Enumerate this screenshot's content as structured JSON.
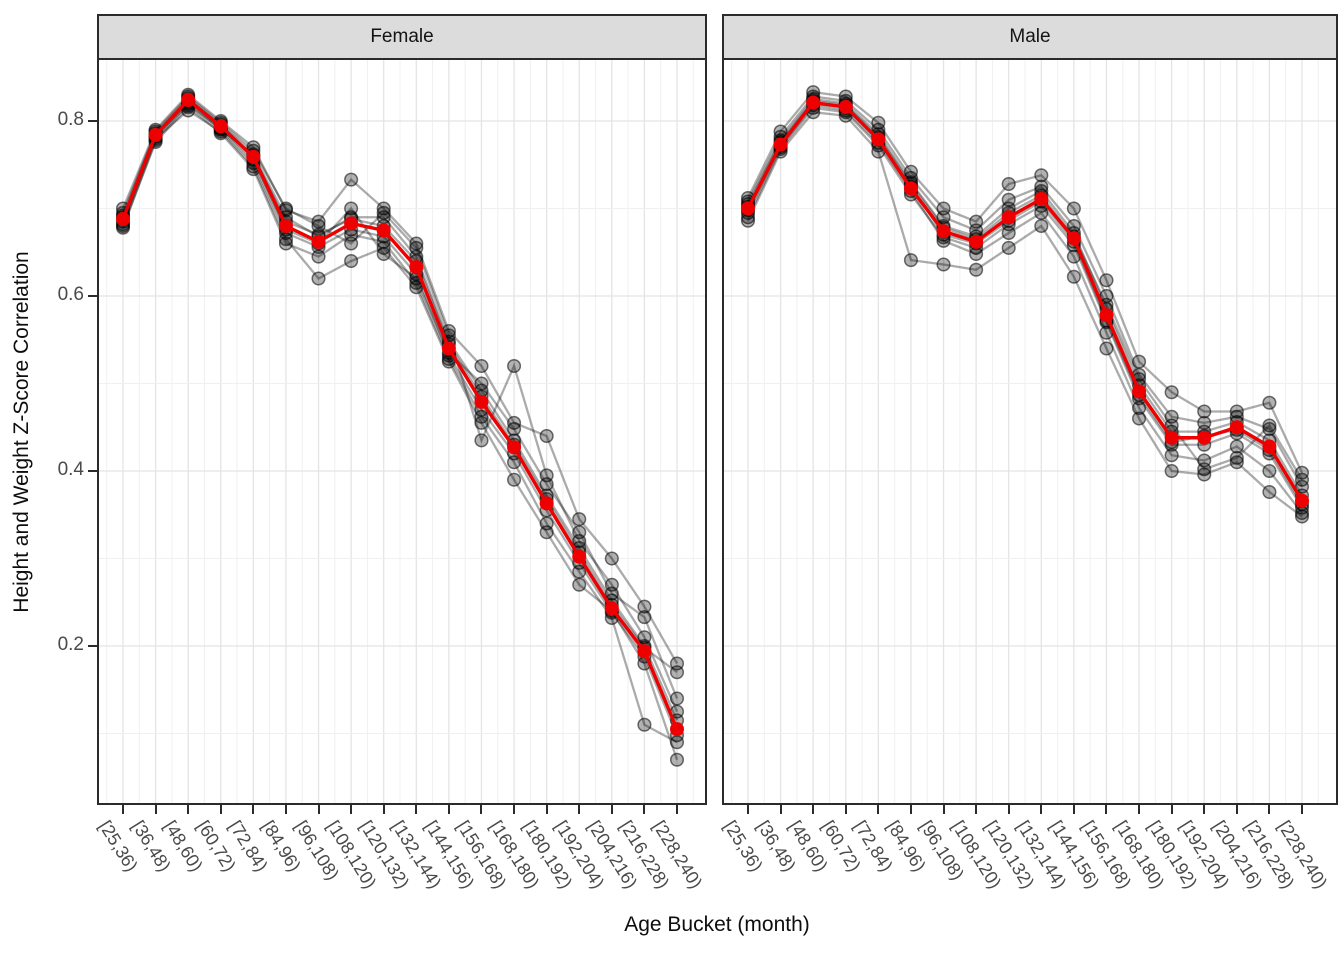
{
  "chart_data": {
    "type": "line",
    "title": "",
    "facets": [
      "Female",
      "Male"
    ],
    "xlabel": "Age Bucket (month)",
    "ylabel": "Height and Weight Z-Score Correlation",
    "categories": [
      "[25,36)",
      "[36,48)",
      "[48,60)",
      "[60,72)",
      "[72,84)",
      "[84,96)",
      "[96,108)",
      "[108,120)",
      "[120,132)",
      "[132,144)",
      "[144,156)",
      "[156,168)",
      "[168,180)",
      "[180,192)",
      "[192,204)",
      "[204,216)",
      "[216,228)",
      "[228,240)"
    ],
    "y_major_ticks": [
      0.8,
      0.6,
      0.4,
      0.2
    ],
    "y_minor_ticks": [
      0.7,
      0.5,
      0.3,
      0.1
    ],
    "y_tick_labels": [
      "0.8",
      "0.6",
      "0.4",
      "0.2"
    ],
    "ylim": [
      0.02,
      0.87
    ],
    "grid": "major+minor",
    "legend_position": "none",
    "panels": [
      {
        "facet": "Female",
        "mean": [
          0.688,
          0.784,
          0.824,
          0.794,
          0.759,
          0.68,
          0.662,
          0.683,
          0.675,
          0.633,
          0.54,
          0.479,
          0.427,
          0.363,
          0.302,
          0.243,
          0.194,
          0.105
        ],
        "individuals": [
          [
            0.678,
            0.778,
            0.82,
            0.79,
            0.752,
            0.672,
            0.656,
            0.676,
            0.668,
            0.625,
            0.532,
            0.47,
            0.42,
            0.355,
            0.295,
            0.238,
            0.188,
            0.098
          ],
          [
            0.7,
            0.79,
            0.83,
            0.8,
            0.77,
            0.698,
            0.685,
            0.733,
            0.7,
            0.66,
            0.56,
            0.52,
            0.455,
            0.44,
            0.345,
            0.3,
            0.245,
            0.18
          ],
          [
            0.682,
            0.78,
            0.812,
            0.788,
            0.748,
            0.665,
            0.62,
            0.64,
            0.655,
            0.61,
            0.525,
            0.455,
            0.39,
            0.33,
            0.27,
            0.24,
            0.18,
            0.07
          ],
          [
            0.692,
            0.786,
            0.826,
            0.796,
            0.762,
            0.69,
            0.668,
            0.69,
            0.69,
            0.645,
            0.548,
            0.492,
            0.435,
            0.372,
            0.312,
            0.252,
            0.2,
            0.115
          ],
          [
            0.685,
            0.782,
            0.822,
            0.792,
            0.756,
            0.676,
            0.66,
            0.7,
            0.648,
            0.62,
            0.535,
            0.5,
            0.448,
            0.385,
            0.33,
            0.26,
            0.233,
            0.14
          ],
          [
            0.695,
            0.788,
            0.828,
            0.798,
            0.766,
            0.7,
            0.68,
            0.66,
            0.695,
            0.655,
            0.555,
            0.435,
            0.52,
            0.395,
            0.32,
            0.27,
            0.21,
            0.125
          ],
          [
            0.68,
            0.776,
            0.816,
            0.786,
            0.745,
            0.66,
            0.645,
            0.67,
            0.662,
            0.615,
            0.528,
            0.462,
            0.41,
            0.34,
            0.285,
            0.232,
            0.11,
            0.09
          ],
          [
            0.69,
            0.783,
            0.818,
            0.791,
            0.76,
            0.685,
            0.67,
            0.688,
            0.68,
            0.64,
            0.545,
            0.485,
            0.43,
            0.368,
            0.307,
            0.247,
            0.198,
            0.17
          ]
        ]
      },
      {
        "facet": "Male",
        "mean": [
          0.7,
          0.773,
          0.821,
          0.816,
          0.779,
          0.723,
          0.674,
          0.662,
          0.69,
          0.711,
          0.666,
          0.578,
          0.491,
          0.438,
          0.438,
          0.45,
          0.428,
          0.366
        ],
        "individuals": [
          [
            0.69,
            0.768,
            0.815,
            0.81,
            0.772,
            0.716,
            0.667,
            0.655,
            0.682,
            0.703,
            0.658,
            0.57,
            0.483,
            0.43,
            0.43,
            0.443,
            0.42,
            0.358
          ],
          [
            0.712,
            0.788,
            0.833,
            0.828,
            0.798,
            0.742,
            0.7,
            0.685,
            0.728,
            0.738,
            0.7,
            0.618,
            0.525,
            0.49,
            0.468,
            0.468,
            0.478,
            0.398
          ],
          [
            0.686,
            0.765,
            0.81,
            0.806,
            0.765,
            0.641,
            0.636,
            0.63,
            0.655,
            0.68,
            0.622,
            0.54,
            0.46,
            0.4,
            0.396,
            0.41,
            0.376,
            0.348
          ],
          [
            0.705,
            0.778,
            0.825,
            0.82,
            0.785,
            0.73,
            0.68,
            0.668,
            0.7,
            0.72,
            0.672,
            0.585,
            0.498,
            0.445,
            0.445,
            0.456,
            0.435,
            0.372
          ],
          [
            0.695,
            0.77,
            0.818,
            0.812,
            0.775,
            0.72,
            0.663,
            0.648,
            0.672,
            0.695,
            0.645,
            0.558,
            0.472,
            0.418,
            0.412,
            0.428,
            0.4,
            0.352
          ],
          [
            0.708,
            0.782,
            0.828,
            0.823,
            0.79,
            0.735,
            0.69,
            0.675,
            0.71,
            0.725,
            0.68,
            0.6,
            0.51,
            0.462,
            0.455,
            0.462,
            0.448,
            0.382
          ],
          [
            0.698,
            0.772,
            0.82,
            0.815,
            0.78,
            0.725,
            0.67,
            0.66,
            0.686,
            0.708,
            0.662,
            0.572,
            0.487,
            0.433,
            0.44,
            0.447,
            0.424,
            0.362
          ],
          [
            0.702,
            0.776,
            0.823,
            0.818,
            0.782,
            0.728,
            0.678,
            0.665,
            0.695,
            0.715,
            0.668,
            0.59,
            0.505,
            0.452,
            0.402,
            0.415,
            0.452,
            0.39
          ]
        ]
      }
    ],
    "colors": {
      "mean_line": "#EE0000",
      "individual_line": "rgba(0,0,0,0.33)",
      "individual_point_fill": "rgba(0,0,0,0.30)",
      "individual_point_stroke": "rgba(0,0,0,0.55)",
      "strip_bg": "#DCDCDC",
      "panel_border": "#2B2B2B",
      "grid_major": "#E4E4E4",
      "grid_minor": "#F0F0F0",
      "axis_text": "#4A4A4A"
    }
  }
}
